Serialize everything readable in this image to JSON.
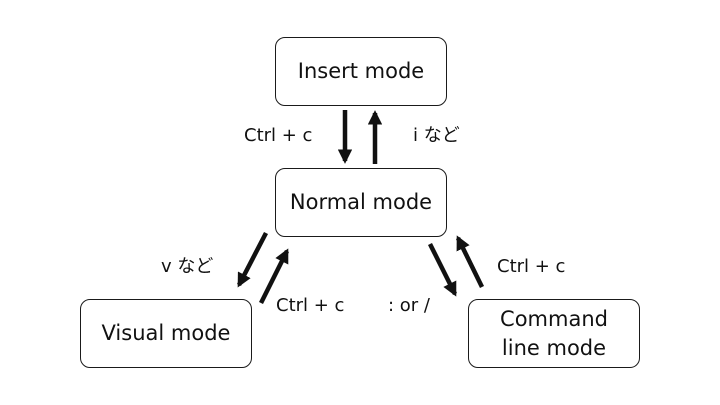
{
  "modes": {
    "insert": "Insert mode",
    "normal": "Normal mode",
    "visual": "Visual mode",
    "command": "Command\nline mode"
  },
  "transitions": {
    "insert_to_normal": "Ctrl + c",
    "normal_to_insert": "i など",
    "normal_to_visual": "v など",
    "visual_to_normal": "Ctrl + c",
    "normal_to_command": ": or /",
    "command_to_normal": "Ctrl + c"
  },
  "colors": {
    "arrow": "#111111",
    "border": "#1a1a1a",
    "background": "#ffffff"
  }
}
